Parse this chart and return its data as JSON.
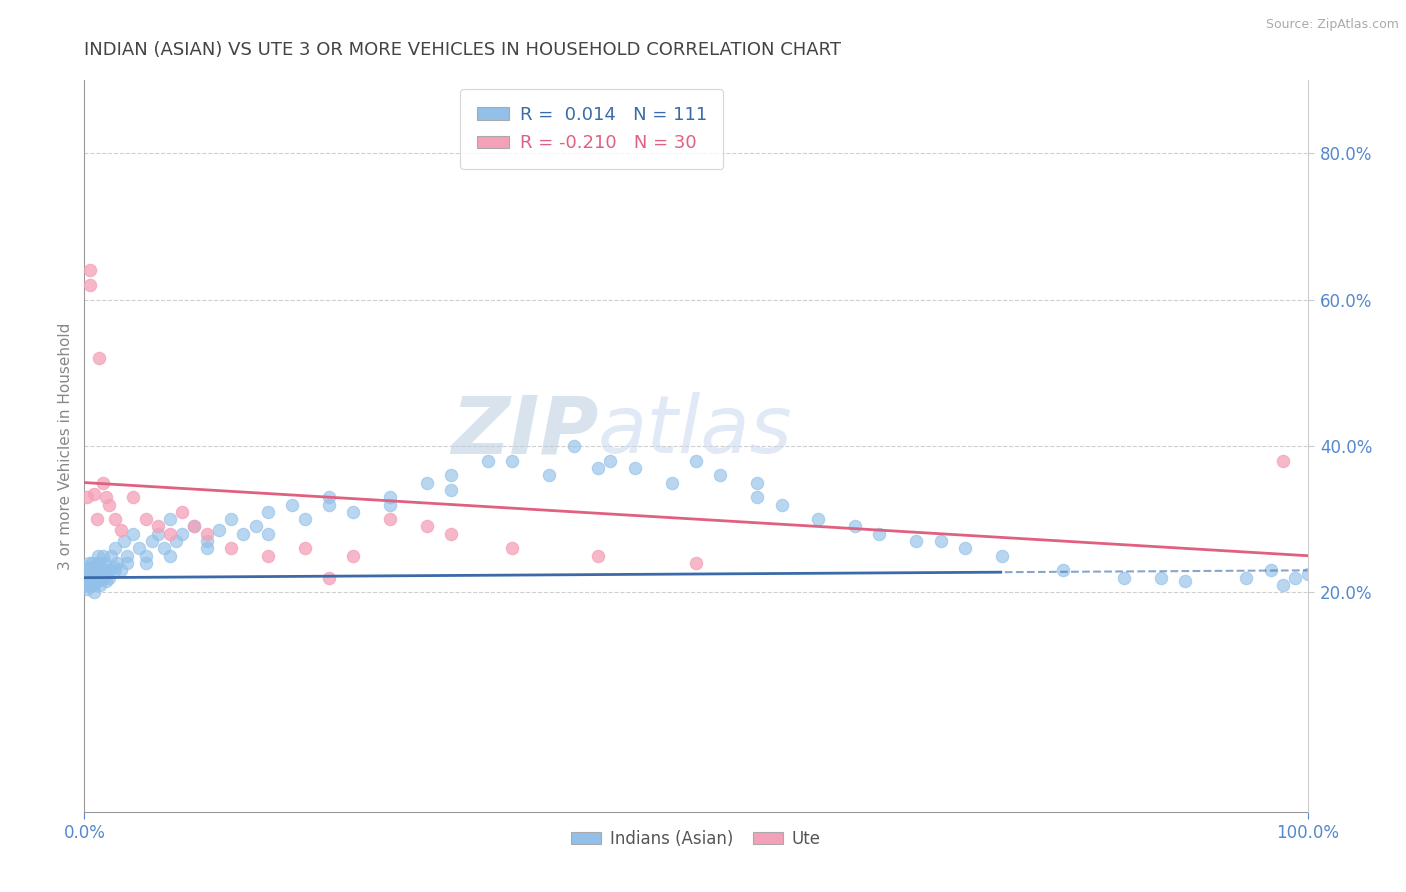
{
  "title": "INDIAN (ASIAN) VS UTE 3 OR MORE VEHICLES IN HOUSEHOLD CORRELATION CHART",
  "source": "Source: ZipAtlas.com",
  "ylabel": "3 or more Vehicles in Household",
  "xlim": [
    0.0,
    100.0
  ],
  "ylim": [
    -10.0,
    90.0
  ],
  "grid_color": "#bbbbbb",
  "background_color": "#ffffff",
  "blue_color": "#92C0E8",
  "pink_color": "#F4A0B8",
  "blue_line_color": "#3A6BA8",
  "pink_line_color": "#E06080",
  "title_color": "#444444",
  "axis_label_color": "#888888",
  "tick_label_color": "#5588CC",
  "source_color": "#aaaaaa",
  "legend_r_blue": "R =  0.014",
  "legend_n_blue": "N = 111",
  "legend_r_pink": "R = -0.210",
  "legend_n_pink": "N = 30",
  "watermark_text": "ZIPatlas",
  "watermark_color": "#C5D8EE",
  "blue_solid_end": 75.0,
  "blue_line_y0": 22.0,
  "blue_line_y100": 23.0,
  "pink_line_y0": 35.0,
  "pink_line_y100": 25.0,
  "blue_points_x": [
    0.1,
    0.1,
    0.1,
    0.15,
    0.15,
    0.2,
    0.2,
    0.2,
    0.3,
    0.3,
    0.3,
    0.4,
    0.4,
    0.4,
    0.5,
    0.5,
    0.6,
    0.6,
    0.7,
    0.7,
    0.8,
    0.8,
    0.9,
    0.9,
    1.0,
    1.0,
    1.0,
    1.1,
    1.1,
    1.2,
    1.2,
    1.3,
    1.3,
    1.4,
    1.5,
    1.5,
    1.6,
    1.7,
    1.8,
    1.9,
    2.0,
    2.2,
    2.4,
    2.5,
    2.7,
    3.0,
    3.2,
    3.5,
    4.0,
    4.5,
    5.0,
    5.5,
    6.0,
    6.5,
    7.0,
    7.5,
    8.0,
    9.0,
    10.0,
    11.0,
    12.0,
    13.0,
    14.0,
    15.0,
    17.0,
    18.0,
    20.0,
    22.0,
    25.0,
    28.0,
    30.0,
    33.0,
    35.0,
    38.0,
    40.0,
    43.0,
    45.0,
    48.0,
    50.0,
    52.0,
    55.0,
    57.0,
    60.0,
    63.0,
    65.0,
    68.0,
    70.0,
    72.0,
    75.0,
    80.0,
    85.0,
    88.0,
    90.0,
    95.0,
    97.0,
    98.0,
    99.0,
    100.0,
    55.0,
    42.0,
    30.0,
    25.0,
    20.0,
    15.0,
    10.0,
    7.0,
    5.0,
    3.5,
    2.5,
    1.5,
    0.8
  ],
  "blue_points_y": [
    22.0,
    21.0,
    23.0,
    22.5,
    21.5,
    22.0,
    23.5,
    20.5,
    22.0,
    23.0,
    21.0,
    22.5,
    21.5,
    24.0,
    22.0,
    23.0,
    21.0,
    24.0,
    22.0,
    23.5,
    22.0,
    21.0,
    23.0,
    22.0,
    22.5,
    21.5,
    24.0,
    22.0,
    25.0,
    22.0,
    23.5,
    21.0,
    24.0,
    22.0,
    23.0,
    25.0,
    22.0,
    24.0,
    21.5,
    23.0,
    22.0,
    25.0,
    23.5,
    26.0,
    24.0,
    23.0,
    27.0,
    25.0,
    28.0,
    26.0,
    25.0,
    27.0,
    28.0,
    26.0,
    30.0,
    27.0,
    28.0,
    29.0,
    27.0,
    28.5,
    30.0,
    28.0,
    29.0,
    31.0,
    32.0,
    30.0,
    33.0,
    31.0,
    33.0,
    35.0,
    36.0,
    38.0,
    38.0,
    36.0,
    40.0,
    38.0,
    37.0,
    35.0,
    38.0,
    36.0,
    33.0,
    32.0,
    30.0,
    29.0,
    28.0,
    27.0,
    27.0,
    26.0,
    25.0,
    23.0,
    22.0,
    22.0,
    21.5,
    22.0,
    23.0,
    21.0,
    22.0,
    22.5,
    35.0,
    37.0,
    34.0,
    32.0,
    32.0,
    28.0,
    26.0,
    25.0,
    24.0,
    24.0,
    23.0,
    22.5,
    20.0
  ],
  "pink_points_x": [
    0.2,
    0.5,
    0.5,
    0.8,
    1.0,
    1.2,
    1.5,
    1.8,
    2.0,
    2.5,
    3.0,
    4.0,
    5.0,
    6.0,
    7.0,
    8.0,
    9.0,
    10.0,
    12.0,
    15.0,
    18.0,
    20.0,
    22.0,
    25.0,
    28.0,
    30.0,
    35.0,
    42.0,
    50.0,
    98.0
  ],
  "pink_points_y": [
    33.0,
    62.0,
    64.0,
    33.5,
    30.0,
    52.0,
    35.0,
    33.0,
    32.0,
    30.0,
    28.5,
    33.0,
    30.0,
    29.0,
    28.0,
    31.0,
    29.0,
    28.0,
    26.0,
    25.0,
    26.0,
    22.0,
    25.0,
    30.0,
    29.0,
    28.0,
    26.0,
    25.0,
    24.0,
    38.0
  ]
}
